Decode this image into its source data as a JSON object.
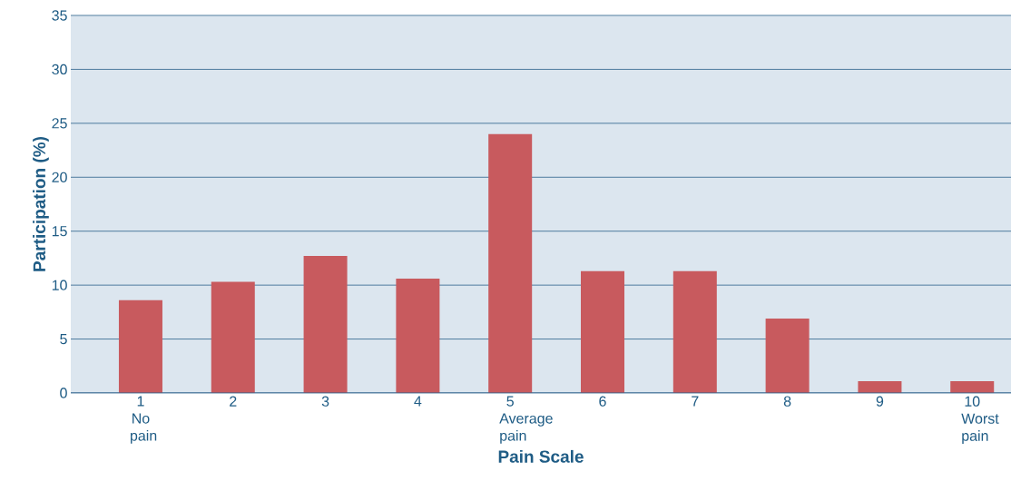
{
  "chart_data": {
    "type": "bar",
    "xlabel": "Pain Scale",
    "ylabel": "Participation (%)",
    "categories": [
      "1 No pain",
      "2",
      "3",
      "4",
      "5 Average pain",
      "6",
      "7",
      "8",
      "9",
      "10 Worst pain"
    ],
    "values": [
      8.6,
      10.3,
      12.7,
      10.6,
      24.0,
      11.3,
      11.3,
      6.9,
      1.1,
      1.1
    ],
    "color": "#c85a5e",
    "ylim": [
      0,
      35
    ],
    "yticks": [
      0,
      5,
      10,
      15,
      20,
      25,
      30,
      35
    ],
    "grid": "y"
  }
}
